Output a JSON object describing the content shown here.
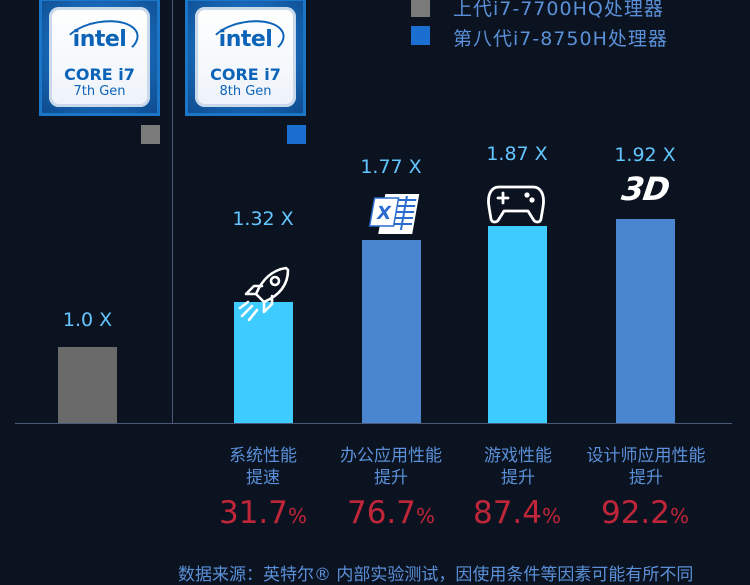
{
  "badges": [
    {
      "brand": "intel",
      "family": "CORE i7",
      "generation": "7th Gen"
    },
    {
      "brand": "intel",
      "family": "CORE i7",
      "generation": "8th Gen"
    }
  ],
  "legend": [
    {
      "label": "上代i7-7700HQ处理器",
      "color": "#7a7a7a"
    },
    {
      "label": "第八代i7-8750H处理器",
      "color": "#1a6fd0"
    }
  ],
  "footer_text": "数据来源：英特尔® 内部实验测试，因使用条件等因素可能有所不同",
  "chart_data": {
    "type": "bar",
    "baseline": {
      "label": "1.0 X",
      "value": 1.0,
      "color": "#6a6a6a"
    },
    "categories": [
      {
        "name_line1": "系统性能",
        "name_line2": "提速",
        "value": 1.32,
        "value_label": "1.32 X",
        "pct": "31.7",
        "pct_unit": "%",
        "color": "#3ecbff",
        "icon": "rocket-icon"
      },
      {
        "name_line1": "办公应用性能",
        "name_line2": "提升",
        "value": 1.77,
        "value_label": "1.77 X",
        "pct": "76.7",
        "pct_unit": "%",
        "color": "#4a86cf",
        "icon": "office-document-icon"
      },
      {
        "name_line1": "游戏性能",
        "name_line2": "提升",
        "value": 1.87,
        "value_label": "1.87 X",
        "pct": "87.4",
        "pct_unit": "%",
        "color": "#3ecbff",
        "icon": "gamepad-icon"
      },
      {
        "name_line1": "设计师应用性能",
        "name_line2": "提升",
        "value": 1.92,
        "value_label": "1.92 X",
        "pct": "92.2",
        "pct_unit": "%",
        "color": "#4a86cf",
        "icon": "3d-icon",
        "icon_text": "3D"
      }
    ],
    "ylim": [
      0,
      1.92
    ]
  }
}
